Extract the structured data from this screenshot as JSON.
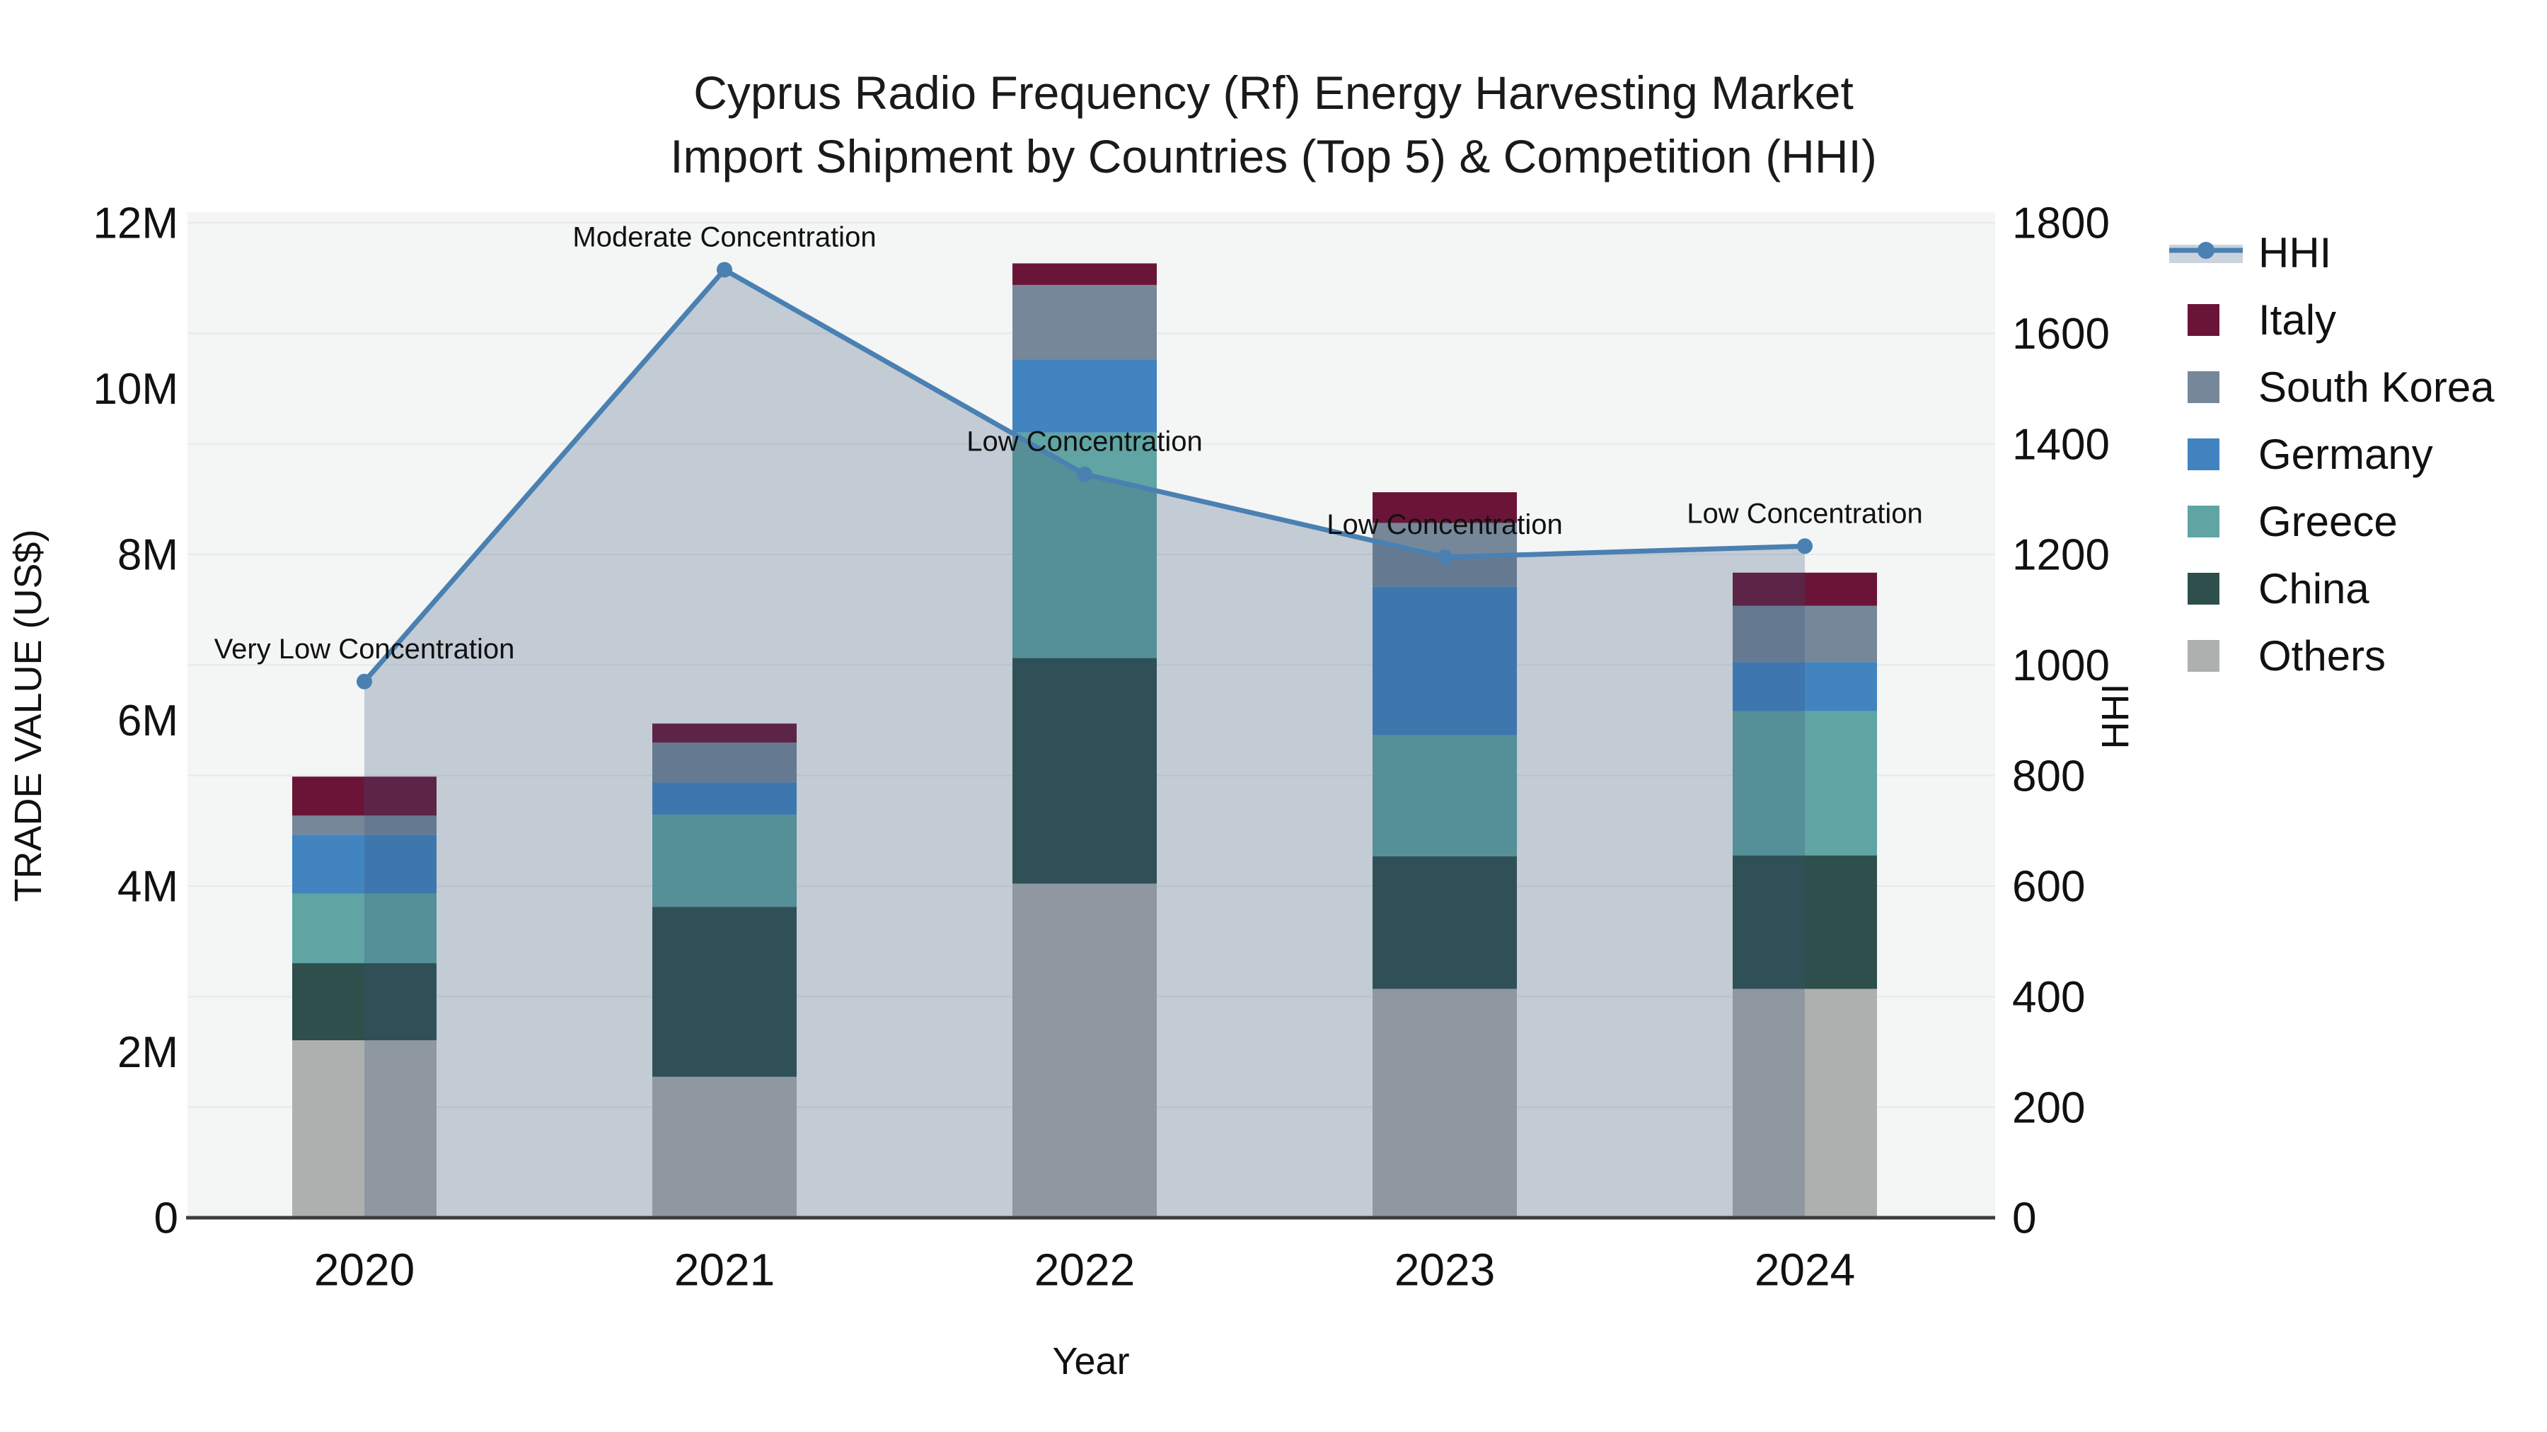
{
  "title": {
    "line1": "Cyprus Radio Frequency (Rf) Energy Harvesting Market",
    "line2": "Import Shipment by Countries (Top 5) & Competition (HHI)"
  },
  "axes": {
    "x_title": "Year",
    "y_left_title": "TRADE VALUE (US$)",
    "y_right_title": "HHI"
  },
  "legend": {
    "items": [
      {
        "label": "HHI",
        "type": "line",
        "color": "#4a80b2"
      },
      {
        "label": "Italy",
        "type": "swatch",
        "color": "#6a1537"
      },
      {
        "label": "South Korea",
        "type": "swatch",
        "color": "#76879a"
      },
      {
        "label": "Germany",
        "type": "swatch",
        "color": "#4184c0"
      },
      {
        "label": "Greece",
        "type": "swatch",
        "color": "#60a4a4"
      },
      {
        "label": "China",
        "type": "swatch",
        "color": "#2e4f4c"
      },
      {
        "label": "Others",
        "type": "swatch",
        "color": "#aeb0af"
      }
    ]
  },
  "colors": {
    "plot_bg": "#f4f5f5",
    "gridline": "#e7e9ea",
    "axis_line": "#3d3d3d",
    "hhi_line": "#4a80b2",
    "hhi_fill": "rgba(55,85,120,0.26)",
    "text": "#111111"
  },
  "chart_data": {
    "type": "combo-stacked-bar-line",
    "categories": [
      "2020",
      "2021",
      "2022",
      "2023",
      "2024"
    ],
    "unit_left": "Million US$",
    "stack_order_bottom_to_top": [
      "Others",
      "China",
      "Greece",
      "Germany",
      "South Korea",
      "Italy"
    ],
    "series": [
      {
        "name": "Others",
        "color": "#aeb0af",
        "values": [
          2.14,
          1.7,
          4.03,
          2.76,
          2.76
        ]
      },
      {
        "name": "China",
        "color": "#2e4f4c",
        "values": [
          0.93,
          2.05,
          2.72,
          1.6,
          1.61
        ]
      },
      {
        "name": "Greece",
        "color": "#60a4a4",
        "values": [
          0.84,
          1.11,
          2.72,
          1.46,
          1.74
        ]
      },
      {
        "name": "Germany",
        "color": "#4184c0",
        "values": [
          0.71,
          0.39,
          0.88,
          1.79,
          0.59
        ]
      },
      {
        "name": "South Korea",
        "color": "#76879a",
        "values": [
          0.23,
          0.48,
          0.9,
          0.77,
          0.68
        ]
      },
      {
        "name": "Italy",
        "color": "#6a1537",
        "values": [
          0.47,
          0.23,
          0.26,
          0.37,
          0.4
        ]
      }
    ],
    "bar_totals": [
      5.32,
      5.96,
      11.51,
      8.75,
      7.78
    ],
    "line_series": {
      "name": "HHI",
      "values": [
        970,
        1715,
        1345,
        1195,
        1215
      ]
    },
    "annotations": [
      {
        "x": "2020",
        "text": "Very Low Concentration"
      },
      {
        "x": "2021",
        "text": "Moderate Concentration"
      },
      {
        "x": "2022",
        "text": "Low Concentration"
      },
      {
        "x": "2023",
        "text": "Low Concentration"
      },
      {
        "x": "2024",
        "text": "Low Concentration"
      }
    ],
    "y_left": {
      "label": "TRADE VALUE (US$)",
      "max": 12,
      "ticks": [
        "0",
        "2M",
        "4M",
        "6M",
        "8M",
        "10M",
        "12M"
      ]
    },
    "y_right": {
      "label": "HHI",
      "max": 1800,
      "ticks": [
        "0",
        "200",
        "400",
        "600",
        "800",
        "1000",
        "1200",
        "1400",
        "1600",
        "1800"
      ]
    },
    "grid": "horizontal, every 200 HHI",
    "legend_position": "right"
  }
}
